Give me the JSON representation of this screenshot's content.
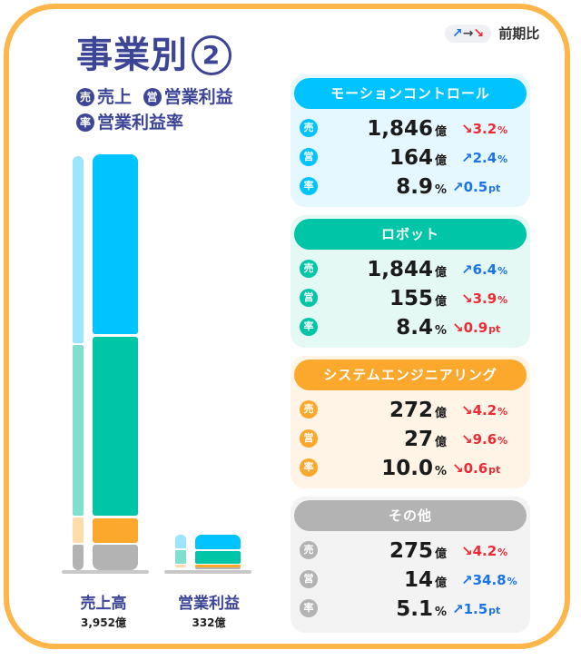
{
  "header": {
    "title": "事業別",
    "title_suffix": "2",
    "legend": [
      {
        "badge": "売",
        "label": "売上"
      },
      {
        "badge": "営",
        "label": "営業利益"
      },
      {
        "badge": "率",
        "label": "営業利益率"
      }
    ],
    "yoy_legend": {
      "up_icon": "↗",
      "flat_icon": "→",
      "down_icon": "↘",
      "label": "前期比"
    }
  },
  "colors": {
    "frame": "#fdb64a",
    "title": "#3c4596",
    "motion_control": "#00c3ff",
    "robot": "#00c6a7",
    "system_engineering": "#fba82c",
    "other": "#b3b3b3",
    "up": "#1a73e8",
    "down": "#ee2a33"
  },
  "chart_data": {
    "type": "bar",
    "stacked": true,
    "title": "事業別②",
    "categories": [
      "売上高",
      "営業利益"
    ],
    "category_totals": [
      "3,952億",
      "332億"
    ],
    "series": [
      {
        "name": "モーションコントロール",
        "values": [
          1846,
          164
        ],
        "color": "#00c3ff"
      },
      {
        "name": "ロボット",
        "values": [
          1844,
          155
        ],
        "color": "#00c6a7"
      },
      {
        "name": "システムエンジニアリング",
        "values": [
          272,
          27
        ],
        "color": "#fba82c"
      },
      {
        "name": "その他",
        "values": [
          275,
          14
        ],
        "color": "#b3b3b3"
      }
    ],
    "xlabel": "",
    "ylabel": "億円",
    "notes": "Thin light-colored bars beside each stack show previous period composition"
  },
  "chart": {
    "sales": {
      "label": "売上高",
      "total": "3,952億"
    },
    "profit": {
      "label": "営業利益",
      "total": "332億"
    }
  },
  "segments": [
    {
      "name": "モーションコントロール",
      "color": "#00c3ff",
      "bg": "#e6f8ff",
      "rows": [
        {
          "badge": "売",
          "value": "1,846",
          "unit": "億",
          "dir": "down",
          "arrow": "↘",
          "change": "3.2",
          "change_unit": "%"
        },
        {
          "badge": "営",
          "value": "164",
          "unit": "億",
          "dir": "up",
          "arrow": "↗",
          "change": "2.4",
          "change_unit": "%"
        },
        {
          "badge": "率",
          "value": "8.9",
          "unit": "%",
          "dir": "up",
          "arrow": "↗",
          "change": "0.5",
          "change_unit": "pt"
        }
      ]
    },
    {
      "name": "ロボット",
      "color": "#00c6a7",
      "bg": "#e4f8f4",
      "rows": [
        {
          "badge": "売",
          "value": "1,844",
          "unit": "億",
          "dir": "up",
          "arrow": "↗",
          "change": "6.4",
          "change_unit": "%"
        },
        {
          "badge": "営",
          "value": "155",
          "unit": "億",
          "dir": "down",
          "arrow": "↘",
          "change": "3.9",
          "change_unit": "%"
        },
        {
          "badge": "率",
          "value": "8.4",
          "unit": "%",
          "dir": "down",
          "arrow": "↘",
          "change": "0.9",
          "change_unit": "pt"
        }
      ]
    },
    {
      "name": "システムエンジニアリング",
      "color": "#fba82c",
      "bg": "#fff4e6",
      "rows": [
        {
          "badge": "売",
          "value": "272",
          "unit": "億",
          "dir": "down",
          "arrow": "↘",
          "change": "4.2",
          "change_unit": "%"
        },
        {
          "badge": "営",
          "value": "27",
          "unit": "億",
          "dir": "down",
          "arrow": "↘",
          "change": "9.6",
          "change_unit": "%"
        },
        {
          "badge": "率",
          "value": "10.0",
          "unit": "%",
          "dir": "down",
          "arrow": "↘",
          "change": "0.6",
          "change_unit": "pt"
        }
      ]
    },
    {
      "name": "その他",
      "color": "#b3b3b3",
      "bg": "#f3f3f3",
      "rows": [
        {
          "badge": "売",
          "value": "275",
          "unit": "億",
          "dir": "down",
          "arrow": "↘",
          "change": "4.2",
          "change_unit": "%"
        },
        {
          "badge": "営",
          "value": "14",
          "unit": "億",
          "dir": "up",
          "arrow": "↗",
          "change": "34.8",
          "change_unit": "%"
        },
        {
          "badge": "率",
          "value": "5.1",
          "unit": "%",
          "dir": "up",
          "arrow": "↗",
          "change": "1.5",
          "change_unit": "pt"
        }
      ]
    }
  ]
}
